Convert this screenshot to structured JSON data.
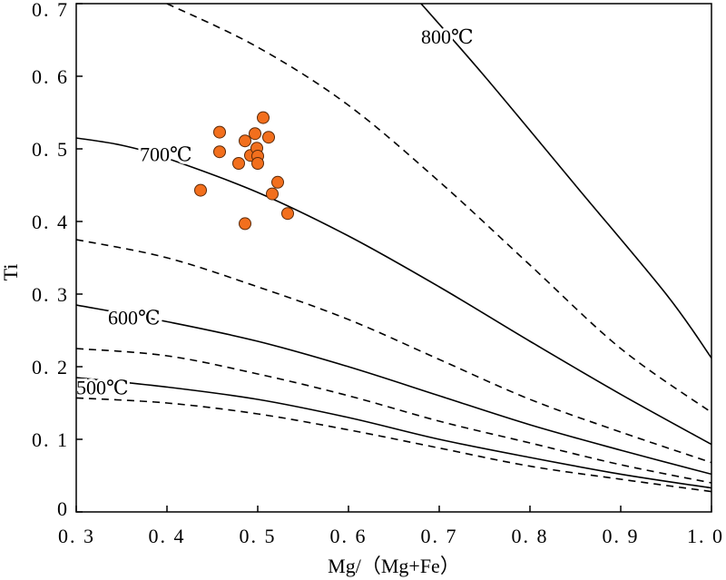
{
  "chart_data": {
    "type": "scatter",
    "title": "",
    "xlabel": "Mg/（Mg+Fe）",
    "ylabel": "Ti",
    "xlim": [
      0.3,
      1.0
    ],
    "ylim": [
      0,
      0.7
    ],
    "grid": false,
    "x_ticks": [
      0.3,
      0.4,
      0.5,
      0.6,
      0.7,
      0.8,
      0.9,
      1.0
    ],
    "x_tick_labels": [
      "0. 3",
      "0. 4",
      "0. 5",
      "0. 6",
      "0. 7",
      "0. 8",
      "0. 9",
      "1. 0"
    ],
    "y_ticks": [
      0,
      0.1,
      0.2,
      0.3,
      0.4,
      0.5,
      0.6,
      0.7
    ],
    "y_tick_labels": [
      "0",
      "0. 1",
      "0. 2",
      "0. 3",
      "0. 4",
      "0. 5",
      "0. 6",
      "0. 7"
    ],
    "point_color": "#f26f1d",
    "point_edge_color": "#5a2a0a",
    "series": [
      {
        "values": [
          {
            "x": 0.437,
            "y": 0.443
          },
          {
            "x": 0.458,
            "y": 0.523
          },
          {
            "x": 0.458,
            "y": 0.496
          },
          {
            "x": 0.479,
            "y": 0.48
          },
          {
            "x": 0.486,
            "y": 0.511
          },
          {
            "x": 0.492,
            "y": 0.491
          },
          {
            "x": 0.497,
            "y": 0.521
          },
          {
            "x": 0.499,
            "y": 0.501
          },
          {
            "x": 0.5,
            "y": 0.49
          },
          {
            "x": 0.5,
            "y": 0.48
          },
          {
            "x": 0.506,
            "y": 0.543
          },
          {
            "x": 0.512,
            "y": 0.516
          },
          {
            "x": 0.516,
            "y": 0.438
          },
          {
            "x": 0.522,
            "y": 0.454
          },
          {
            "x": 0.533,
            "y": 0.411
          },
          {
            "x": 0.486,
            "y": 0.397
          }
        ]
      }
    ],
    "isotherms": [
      {
        "label": "800℃",
        "style": "solid",
        "label_at": {
          "x": 0.68,
          "y": 0.655
        },
        "points": [
          [
            0.68,
            0.7
          ],
          [
            0.75,
            0.6
          ],
          [
            0.85,
            0.45
          ],
          [
            0.95,
            0.3
          ],
          [
            1.0,
            0.212
          ]
        ]
      },
      {
        "label": "",
        "style": "dashed",
        "points": [
          [
            0.4,
            0.7
          ],
          [
            0.5,
            0.64
          ],
          [
            0.6,
            0.56
          ],
          [
            0.7,
            0.455
          ],
          [
            0.8,
            0.34
          ],
          [
            0.9,
            0.225
          ],
          [
            1.0,
            0.137
          ]
        ]
      },
      {
        "label": "700℃",
        "style": "solid",
        "label_at": {
          "x": 0.37,
          "y": 0.493
        },
        "points": [
          [
            0.3,
            0.515
          ],
          [
            0.35,
            0.505
          ],
          [
            0.4,
            0.487
          ],
          [
            0.5,
            0.44
          ],
          [
            0.6,
            0.38
          ],
          [
            0.7,
            0.31
          ],
          [
            0.8,
            0.235
          ],
          [
            0.9,
            0.162
          ],
          [
            1.0,
            0.093
          ]
        ]
      },
      {
        "label": "",
        "style": "dashed",
        "points": [
          [
            0.3,
            0.375
          ],
          [
            0.4,
            0.35
          ],
          [
            0.5,
            0.31
          ],
          [
            0.6,
            0.265
          ],
          [
            0.7,
            0.21
          ],
          [
            0.8,
            0.155
          ],
          [
            0.9,
            0.11
          ],
          [
            1.0,
            0.068
          ]
        ]
      },
      {
        "label": "600℃",
        "style": "solid",
        "label_at": {
          "x": 0.335,
          "y": 0.268
        },
        "points": [
          [
            0.3,
            0.285
          ],
          [
            0.4,
            0.262
          ],
          [
            0.5,
            0.235
          ],
          [
            0.6,
            0.2
          ],
          [
            0.7,
            0.16
          ],
          [
            0.8,
            0.12
          ],
          [
            0.9,
            0.085
          ],
          [
            1.0,
            0.052
          ]
        ]
      },
      {
        "label": "",
        "style": "dashed",
        "points": [
          [
            0.3,
            0.225
          ],
          [
            0.4,
            0.215
          ],
          [
            0.5,
            0.19
          ],
          [
            0.6,
            0.16
          ],
          [
            0.7,
            0.125
          ],
          [
            0.8,
            0.095
          ],
          [
            0.9,
            0.065
          ],
          [
            1.0,
            0.04
          ]
        ]
      },
      {
        "label": "500℃",
        "style": "solid",
        "label_at": {
          "x": 0.3,
          "y": 0.172
        },
        "points": [
          [
            0.3,
            0.185
          ],
          [
            0.4,
            0.172
          ],
          [
            0.5,
            0.155
          ],
          [
            0.6,
            0.13
          ],
          [
            0.7,
            0.1
          ],
          [
            0.8,
            0.075
          ],
          [
            0.9,
            0.052
          ],
          [
            1.0,
            0.033
          ]
        ]
      },
      {
        "label": "",
        "style": "dashed",
        "points": [
          [
            0.3,
            0.157
          ],
          [
            0.4,
            0.15
          ],
          [
            0.5,
            0.135
          ],
          [
            0.6,
            0.113
          ],
          [
            0.7,
            0.088
          ],
          [
            0.8,
            0.063
          ],
          [
            0.9,
            0.045
          ],
          [
            1.0,
            0.028
          ]
        ]
      }
    ]
  }
}
